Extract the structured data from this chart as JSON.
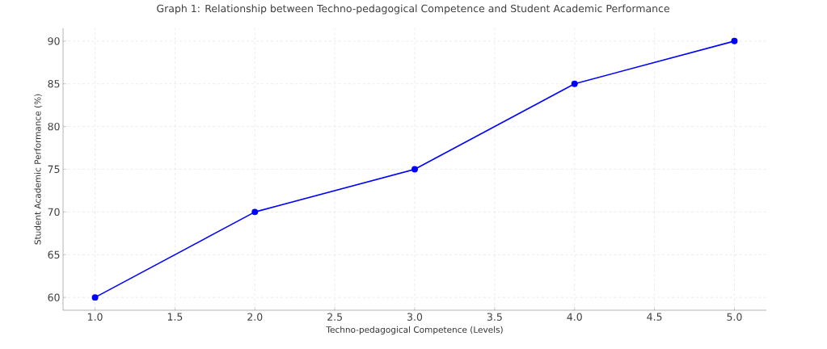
{
  "chart_data": {
    "type": "line",
    "title": "Graph 1: Relationship between Techno-pedagogical Competence and Student Academic Performance",
    "xlabel": "Techno-pedagogical Competence (Levels)",
    "ylabel": "Student Academic Performance (%)",
    "x": [
      1,
      2,
      3,
      4,
      5
    ],
    "values": [
      60,
      70,
      75,
      85,
      90
    ],
    "color": "#0000ff",
    "marker": "circle",
    "line_style": "solid",
    "grid": true,
    "xlim": [
      0.8,
      5.2
    ],
    "ylim": [
      58.5,
      91.5
    ],
    "xticks": [
      {
        "value": 1,
        "label": "1.0"
      },
      {
        "value": 1.5,
        "label": "1.5"
      },
      {
        "value": 2,
        "label": "2.0"
      },
      {
        "value": 2.5,
        "label": "2.5"
      },
      {
        "value": 3,
        "label": "3.0"
      },
      {
        "value": 3.5,
        "label": "3.5"
      },
      {
        "value": 4,
        "label": "4.0"
      },
      {
        "value": 4.5,
        "label": "4.5"
      },
      {
        "value": 5,
        "label": "5.0"
      }
    ],
    "yticks": [
      60,
      65,
      70,
      75,
      80,
      85,
      90
    ]
  }
}
